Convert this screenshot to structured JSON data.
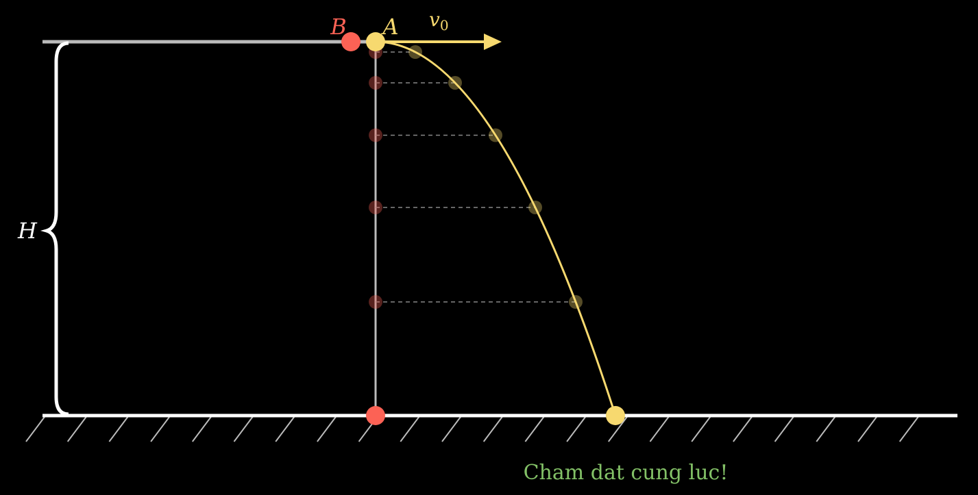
{
  "labels": {
    "B": "B",
    "A": "A",
    "velocity": {
      "base": "v",
      "sub": "0"
    },
    "height": "H"
  },
  "caption": "Cham dat cung luc!"
}
